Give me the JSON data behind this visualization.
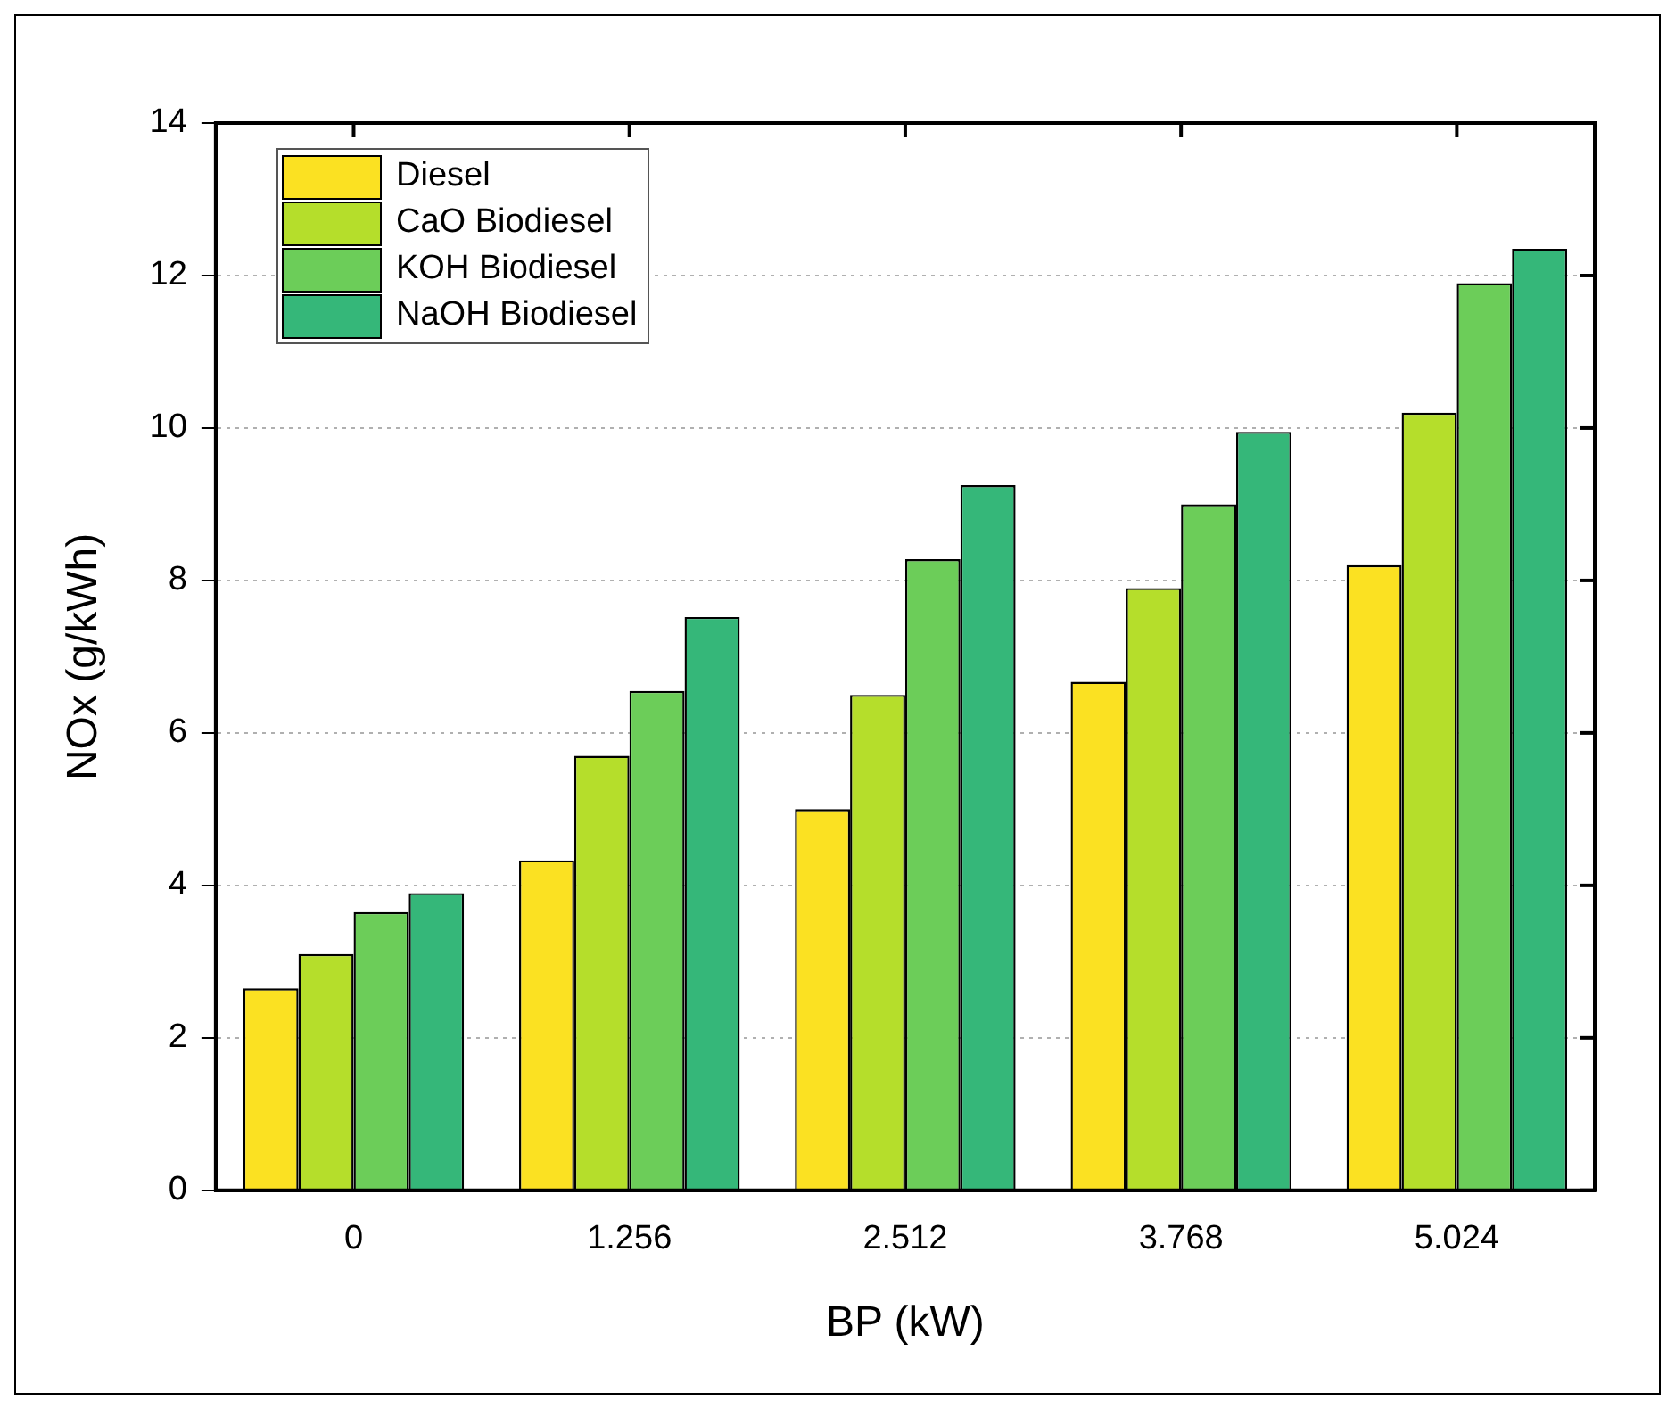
{
  "chart_data": {
    "type": "bar",
    "xlabel": "BP (kW)",
    "ylabel": "NOx (g/kWh)",
    "categories": [
      "0",
      "1.256",
      "2.512",
      "3.768",
      "5.024"
    ],
    "series": [
      {
        "name": "Diesel",
        "color": "#fbe122",
        "values": [
          2.65,
          4.33,
          5.0,
          6.67,
          8.2
        ]
      },
      {
        "name": "CaO Biodiesel",
        "color": "#b5de2b",
        "values": [
          3.1,
          5.7,
          6.5,
          7.9,
          10.2
        ]
      },
      {
        "name": "KOH Biodiesel",
        "color": "#6ccd59",
        "values": [
          3.65,
          6.55,
          8.28,
          9.0,
          11.9
        ]
      },
      {
        "name": "NaOH Biodiesel",
        "color": "#35b779",
        "values": [
          3.9,
          7.52,
          9.25,
          9.95,
          12.35
        ]
      }
    ],
    "ylim": [
      0,
      14
    ],
    "yticks": [
      0,
      2,
      4,
      6,
      8,
      10,
      12,
      14
    ],
    "grid": "y",
    "legend": "top left"
  }
}
